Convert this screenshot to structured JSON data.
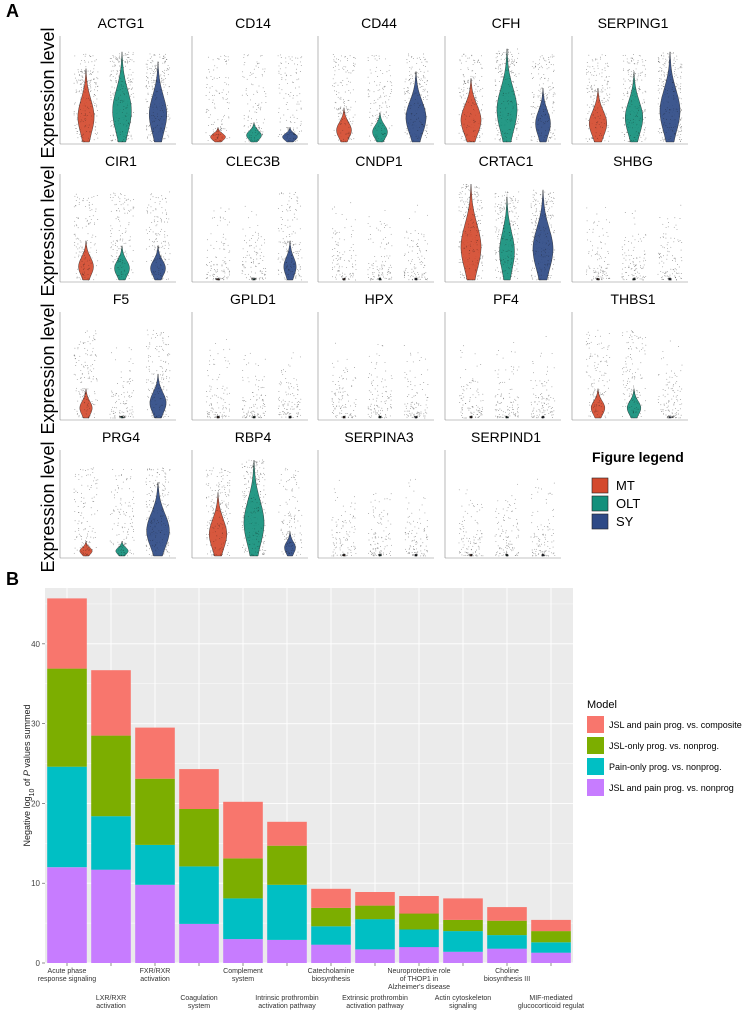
{
  "figure": {
    "panel_a_label": "A",
    "panel_b_label": "B"
  },
  "colors": {
    "MT": "#d44a2e",
    "OLT": "#14907c",
    "SY": "#2e4a86",
    "bar_grid_bg": "#ebebeb",
    "model_colors": [
      "#f8766d",
      "#7cae00",
      "#00bfc4",
      "#c77cff"
    ]
  },
  "violin": {
    "y_label": "Expression level",
    "groups": [
      "MT",
      "OLT",
      "SY"
    ],
    "genes": [
      {
        "name": "ACTG1",
        "heights": [
          0.75,
          0.92,
          0.82
        ],
        "spread": [
          0.45,
          0.55,
          0.5
        ]
      },
      {
        "name": "CD14",
        "heights": [
          0.15,
          0.2,
          0.15
        ],
        "spread": [
          0.4,
          0.4,
          0.4
        ]
      },
      {
        "name": "CD44",
        "heights": [
          0.35,
          0.3,
          0.72
        ],
        "spread": [
          0.4,
          0.4,
          0.6
        ]
      },
      {
        "name": "CFH",
        "heights": [
          0.65,
          0.95,
          0.55
        ],
        "spread": [
          0.6,
          0.6,
          0.4
        ]
      },
      {
        "name": "SERPING1",
        "heights": [
          0.55,
          0.72,
          0.92
        ],
        "spread": [
          0.5,
          0.5,
          0.6
        ]
      },
      {
        "name": "CIR1",
        "heights": [
          0.4,
          0.35,
          0.35
        ],
        "spread": [
          0.4,
          0.4,
          0.4
        ]
      },
      {
        "name": "CLEC3B",
        "heights": [
          0.0,
          0.0,
          0.4
        ],
        "spread": [
          0.1,
          0.1,
          0.3
        ]
      },
      {
        "name": "CNDP1",
        "heights": [
          0.0,
          0.0,
          0.0
        ],
        "spread": [
          0.02,
          0.02,
          0.02
        ]
      },
      {
        "name": "CRTAC1",
        "heights": [
          0.98,
          0.85,
          0.92
        ],
        "spread": [
          0.6,
          0.4,
          0.6
        ]
      },
      {
        "name": "SHBG",
        "heights": [
          0.0,
          0.0,
          0.0
        ],
        "spread": [
          0.02,
          0.02,
          0.02
        ]
      },
      {
        "name": "F5",
        "heights": [
          0.3,
          0.0,
          0.45
        ],
        "spread": [
          0.3,
          0.15,
          0.45
        ]
      },
      {
        "name": "GPLD1",
        "heights": [
          0.0,
          0.0,
          0.0
        ],
        "spread": [
          0.02,
          0.02,
          0.02
        ]
      },
      {
        "name": "HPX",
        "heights": [
          0.0,
          0.0,
          0.0
        ],
        "spread": [
          0.02,
          0.02,
          0.02
        ]
      },
      {
        "name": "PF4",
        "heights": [
          0.0,
          0.0,
          0.0
        ],
        "spread": [
          0.02,
          0.02,
          0.02
        ]
      },
      {
        "name": "THBS1",
        "heights": [
          0.3,
          0.3,
          0.0
        ],
        "spread": [
          0.35,
          0.35,
          0.2
        ]
      },
      {
        "name": "PRG4",
        "heights": [
          0.15,
          0.15,
          0.75
        ],
        "spread": [
          0.3,
          0.3,
          0.7
        ]
      },
      {
        "name": "RBP4",
        "heights": [
          0.65,
          0.98,
          0.25
        ],
        "spread": [
          0.5,
          0.6,
          0.25
        ]
      },
      {
        "name": "SERPINA3",
        "heights": [
          0.0,
          0.0,
          0.0
        ],
        "spread": [
          0.02,
          0.02,
          0.02
        ]
      },
      {
        "name": "SERPIND1",
        "heights": [
          0.0,
          0.0,
          0.0
        ],
        "spread": [
          0.02,
          0.02,
          0.02
        ]
      }
    ],
    "legend": {
      "title": "Figure legend",
      "items": [
        "MT",
        "OLT",
        "SY"
      ]
    }
  },
  "chart_data": [
    {
      "type": "violin",
      "title": "",
      "ylabel": "Expression level",
      "groups": [
        "MT",
        "OLT",
        "SY"
      ],
      "genes": [
        "ACTG1",
        "CD14",
        "CD44",
        "CFH",
        "SERPING1",
        "CIR1",
        "CLEC3B",
        "CNDP1",
        "CRTAC1",
        "SHBG",
        "F5",
        "GPLD1",
        "HPX",
        "PF4",
        "THBS1",
        "PRG4",
        "RBP4",
        "SERPINA3",
        "SERPIND1"
      ]
    },
    {
      "type": "bar",
      "stacked": true,
      "title": "",
      "xlabel": "",
      "ylabel": "Negative log10 of P values summed",
      "ylabel_parts": [
        "Negative log",
        "10",
        " of ",
        "P",
        " values summed"
      ],
      "ylim": [
        0,
        47
      ],
      "yticks": [
        0,
        10,
        20,
        30,
        40
      ],
      "categories": [
        "Acute phase response signaling",
        "LXR/RXR activation",
        "FXR/RXR activation",
        "Coagulation system",
        "Complement system",
        "Intrinsic prothrombin activation pathway",
        "Catecholamine biosynthesis",
        "Extrinsic prothrombin activation pathway",
        "Neuroprotective role of THOP1 in Alzheimer's disease",
        "Actin cytoskeleton signaling",
        "Choline biosynthesis III",
        "MIF-mediated glucocorticoid regulat"
      ],
      "category_label_lines": [
        [
          "Acute phase",
          "response signaling"
        ],
        [
          "LXR/RXR",
          "activation"
        ],
        [
          "FXR/RXR",
          "activation"
        ],
        [
          "Coagulation",
          "system"
        ],
        [
          "Complement",
          "system"
        ],
        [
          "Intrinsic prothrombin",
          "activation pathway"
        ],
        [
          "Catecholamine",
          "biosynthesis"
        ],
        [
          "Extrinsic prothrombin",
          "activation pathway"
        ],
        [
          "Neuroprotective role",
          "of THOP1 in",
          "Alzheimer's disease"
        ],
        [
          "Actin cytoskeleton",
          "signaling"
        ],
        [
          "Choline",
          "biosynthesis III"
        ],
        [
          "MIF-mediated",
          "glucocorticoid regulat"
        ]
      ],
      "legend_title": "Model",
      "series": [
        {
          "name": "JSL and pain prog. vs. nonprog",
          "values": [
            12.0,
            11.7,
            9.8,
            4.9,
            3.0,
            2.9,
            2.3,
            1.7,
            2.0,
            1.4,
            1.8,
            1.3
          ]
        },
        {
          "name": "Pain-only prog. vs. nonprog.",
          "values": [
            12.6,
            6.7,
            5.0,
            7.2,
            5.1,
            6.9,
            2.3,
            3.8,
            2.2,
            2.6,
            1.7,
            1.3
          ]
        },
        {
          "name": "JSL-only prog. vs. nonprog.",
          "values": [
            12.3,
            10.1,
            8.3,
            7.2,
            5.0,
            4.9,
            2.3,
            1.7,
            2.0,
            1.4,
            1.8,
            1.4
          ]
        },
        {
          "name": "JSL and pain prog. vs. composite",
          "values": [
            8.8,
            8.2,
            6.4,
            5.0,
            7.1,
            3.0,
            2.4,
            1.7,
            2.2,
            2.7,
            1.7,
            1.4
          ]
        }
      ],
      "legend_order": [
        3,
        2,
        1,
        0
      ]
    }
  ]
}
